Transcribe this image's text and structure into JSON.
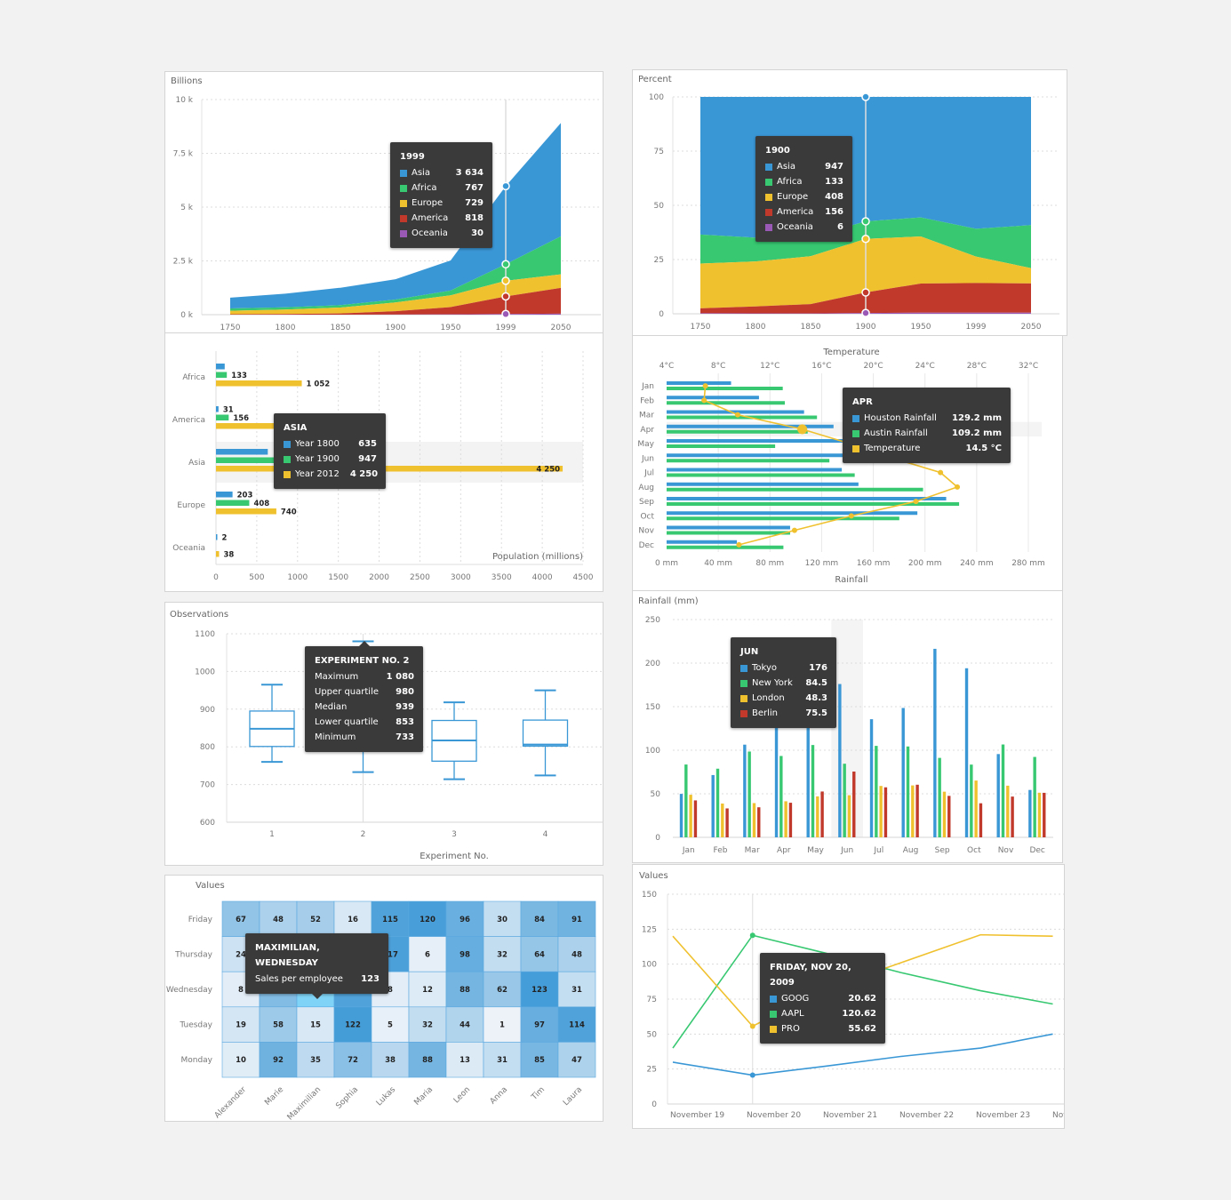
{
  "colors": {
    "blue": "#3a97d6",
    "green": "#37c871",
    "yellow": "#f0c12f",
    "red": "#c0392b",
    "purple": "#9b59b6",
    "tooltip_bg": "#3a3a3a"
  },
  "chart_data": [
    {
      "id": "stacked-area",
      "type": "area",
      "stacked": true,
      "title": "",
      "ylabel": "Billions",
      "xlabel": "",
      "categories": [
        "1750",
        "1800",
        "1850",
        "1900",
        "1950",
        "1999",
        "2050"
      ],
      "yticks": [
        "0 k",
        "2.5 k",
        "5 k",
        "7.5 k",
        "10 k"
      ],
      "ylim": [
        0,
        10000
      ],
      "grid": true,
      "series": [
        {
          "name": "Asia",
          "color": "#3a97d6",
          "values": [
            502,
            635,
            809,
            947,
            1402,
            3634,
            5268
          ]
        },
        {
          "name": "Africa",
          "color": "#37c871",
          "values": [
            106,
            107,
            111,
            133,
            221,
            767,
            1766
          ]
        },
        {
          "name": "Europe",
          "color": "#f0c12f",
          "values": [
            163,
            203,
            276,
            408,
            547,
            729,
            628
          ]
        },
        {
          "name": "America",
          "color": "#c0392b",
          "values": [
            18,
            31,
            54,
            156,
            339,
            818,
            1201
          ]
        },
        {
          "name": "Oceania",
          "color": "#9b59b6",
          "values": [
            2,
            2,
            2,
            6,
            13,
            30,
            46
          ]
        }
      ],
      "tooltip": {
        "title": "1999",
        "rows": [
          {
            "label": "Asia",
            "value": "3 634",
            "color": "#3a97d6"
          },
          {
            "label": "Africa",
            "value": "767",
            "color": "#37c871"
          },
          {
            "label": "Europe",
            "value": "729",
            "color": "#f0c12f"
          },
          {
            "label": "America",
            "value": "818",
            "color": "#c0392b"
          },
          {
            "label": "Oceania",
            "value": "30",
            "color": "#9b59b6"
          }
        ]
      },
      "crosshair_category": "1999"
    },
    {
      "id": "percent-area",
      "type": "area",
      "stacked": "percent",
      "title": "",
      "ylabel": "Percent",
      "xlabel": "",
      "categories": [
        "1750",
        "1800",
        "1850",
        "1900",
        "1950",
        "1999",
        "2050"
      ],
      "yticks": [
        "0",
        "25",
        "50",
        "75",
        "100"
      ],
      "ylim": [
        0,
        100
      ],
      "grid": true,
      "series": [
        {
          "name": "Asia",
          "color": "#3a97d6",
          "values": [
            502,
            635,
            809,
            947,
            1402,
            3634,
            5268
          ]
        },
        {
          "name": "Africa",
          "color": "#37c871",
          "values": [
            106,
            107,
            111,
            133,
            221,
            767,
            1766
          ]
        },
        {
          "name": "Europe",
          "color": "#f0c12f",
          "values": [
            163,
            203,
            276,
            408,
            547,
            729,
            628
          ]
        },
        {
          "name": "America",
          "color": "#c0392b",
          "values": [
            18,
            31,
            54,
            156,
            339,
            818,
            1201
          ]
        },
        {
          "name": "Oceania",
          "color": "#9b59b6",
          "values": [
            2,
            2,
            2,
            6,
            13,
            30,
            46
          ]
        }
      ],
      "tooltip": {
        "title": "1900",
        "rows": [
          {
            "label": "Asia",
            "value": "947",
            "color": "#3a97d6"
          },
          {
            "label": "Africa",
            "value": "133",
            "color": "#37c871"
          },
          {
            "label": "Europe",
            "value": "408",
            "color": "#f0c12f"
          },
          {
            "label": "America",
            "value": "156",
            "color": "#c0392b"
          },
          {
            "label": "Oceania",
            "value": "6",
            "color": "#9b59b6"
          }
        ]
      },
      "crosshair_category": "1900"
    },
    {
      "id": "horizontal-bar",
      "type": "bar",
      "orientation": "horizontal",
      "title": "",
      "xlabel": "Population (millions)",
      "ylabel": "",
      "categories": [
        "Africa",
        "America",
        "Asia",
        "Europe",
        "Oceania"
      ],
      "xticks": [
        "0",
        "500",
        "1000",
        "1500",
        "2000",
        "2500",
        "3000",
        "3500",
        "4000",
        "4500"
      ],
      "xlim": [
        0,
        4500
      ],
      "grid": true,
      "series": [
        {
          "name": "Year 1800",
          "color": "#3a97d6",
          "values": [
            107,
            31,
            635,
            203,
            2
          ],
          "labels": [
            "",
            "31",
            "",
            "203",
            "2"
          ]
        },
        {
          "name": "Year 1900",
          "color": "#37c871",
          "values": [
            133,
            156,
            947,
            408,
            6
          ],
          "labels": [
            "133",
            "156",
            "",
            "408",
            ""
          ]
        },
        {
          "name": "Year 2012",
          "color": "#f0c12f",
          "values": [
            1052,
            954,
            4250,
            740,
            38
          ],
          "labels": [
            "1 052",
            "",
            "4 250",
            "740",
            "38"
          ]
        }
      ],
      "highlight_category": "Asia",
      "tooltip": {
        "title": "ASIA",
        "rows": [
          {
            "label": "Year 1800",
            "value": "635",
            "color": "#3a97d6"
          },
          {
            "label": "Year 1900",
            "value": "947",
            "color": "#37c871"
          },
          {
            "label": "Year 2012",
            "value": "4 250",
            "color": "#f0c12f"
          }
        ]
      }
    },
    {
      "id": "combo-rain-temp",
      "type": "bar",
      "orientation": "horizontal",
      "title": "",
      "xlabel": "Rainfall",
      "x2label": "Temperature",
      "categories": [
        "Jan",
        "Feb",
        "Mar",
        "Apr",
        "May",
        "Jun",
        "Jul",
        "Aug",
        "Sep",
        "Oct",
        "Nov",
        "Dec"
      ],
      "xticks": [
        "0 mm",
        "40 mm",
        "80 mm",
        "120 mm",
        "160 mm",
        "200 mm",
        "240 mm",
        "280 mm"
      ],
      "x2ticks": [
        "4°C",
        "8°C",
        "12°C",
        "16°C",
        "20°C",
        "24°C",
        "28°C",
        "32°C"
      ],
      "xlim": [
        0,
        280
      ],
      "x2lim": [
        4,
        32
      ],
      "grid": true,
      "series": [
        {
          "name": "Houston Rainfall",
          "color": "#3a97d6",
          "type": "bar",
          "values": [
            49.9,
            71.5,
            106.4,
            129.2,
            144.0,
            176.0,
            135.6,
            148.5,
            216.4,
            194.1,
            95.6,
            54.4
          ]
        },
        {
          "name": "Austin Rainfall",
          "color": "#37c871",
          "type": "bar",
          "values": [
            89.9,
            91.5,
            116.4,
            109.2,
            84.0,
            126.0,
            145.6,
            198.5,
            226.4,
            180.1,
            95.6,
            90.4
          ]
        },
        {
          "name": "Temperature",
          "color": "#f0c12f",
          "type": "line",
          "values": [
            7.0,
            6.9,
            9.5,
            14.5,
            18.2,
            21.5,
            25.2,
            26.5,
            23.3,
            18.3,
            13.9,
            9.6
          ]
        }
      ],
      "highlight_category": "Apr",
      "tooltip": {
        "title": "APR",
        "rows": [
          {
            "label": "Houston Rainfall",
            "value": "129.2 mm",
            "color": "#3a97d6"
          },
          {
            "label": "Austin Rainfall",
            "value": "109.2 mm",
            "color": "#37c871"
          },
          {
            "label": "Temperature",
            "value": "14.5 °C",
            "color": "#f0c12f"
          }
        ]
      }
    },
    {
      "id": "boxplot",
      "type": "boxplot",
      "title": "",
      "xlabel": "Experiment No.",
      "ylabel": "Observations",
      "categories": [
        "1",
        "2",
        "3",
        "4"
      ],
      "yticks": [
        "600",
        "700",
        "800",
        "900",
        "1000",
        "1100"
      ],
      "ylim": [
        600,
        1100
      ],
      "grid": true,
      "boxes": [
        {
          "min": 760,
          "q1": 801,
          "median": 848,
          "q3": 895,
          "max": 965
        },
        {
          "min": 733,
          "q1": 853,
          "median": 939,
          "q3": 980,
          "max": 1080
        },
        {
          "min": 714,
          "q1": 762,
          "median": 817,
          "q3": 870,
          "max": 918
        },
        {
          "min": 724,
          "q1": 802,
          "median": 806,
          "q3": 871,
          "max": 950
        }
      ],
      "color": "#3a97d6",
      "tooltip": {
        "title": "EXPERIMENT NO. 2",
        "rows": [
          {
            "label": "Maximum",
            "value": "1 080"
          },
          {
            "label": "Upper quartile",
            "value": "980"
          },
          {
            "label": "Median",
            "value": "939"
          },
          {
            "label": "Lower quartile",
            "value": "853"
          },
          {
            "label": "Minimum",
            "value": "733"
          }
        ]
      }
    },
    {
      "id": "column-rainfall",
      "type": "bar",
      "orientation": "vertical",
      "title": "",
      "ylabel": "Rainfall (mm)",
      "xlabel": "",
      "categories": [
        "Jan",
        "Feb",
        "Mar",
        "Apr",
        "May",
        "Jun",
        "Jul",
        "Aug",
        "Sep",
        "Oct",
        "Nov",
        "Dec"
      ],
      "yticks": [
        "0",
        "50",
        "100",
        "150",
        "200",
        "250"
      ],
      "ylim": [
        0,
        250
      ],
      "grid": true,
      "series": [
        {
          "name": "Tokyo",
          "color": "#3a97d6",
          "values": [
            49.9,
            71.5,
            106.4,
            129.2,
            144.0,
            176.0,
            135.6,
            148.5,
            216.4,
            194.1,
            95.6,
            54.4
          ]
        },
        {
          "name": "New York",
          "color": "#37c871",
          "values": [
            83.6,
            78.8,
            98.5,
            93.4,
            106.0,
            84.5,
            105.0,
            104.3,
            91.2,
            83.5,
            106.6,
            92.3
          ]
        },
        {
          "name": "London",
          "color": "#f0c12f",
          "values": [
            48.9,
            38.8,
            39.3,
            41.4,
            47.0,
            48.3,
            59.0,
            59.6,
            52.4,
            65.2,
            59.3,
            51.2
          ]
        },
        {
          "name": "Berlin",
          "color": "#c0392b",
          "values": [
            42.4,
            33.2,
            34.5,
            39.7,
            52.6,
            75.5,
            57.4,
            60.4,
            47.6,
            39.1,
            46.8,
            51.1
          ]
        }
      ],
      "highlight_category": "Jun",
      "tooltip": {
        "title": "JUN",
        "rows": [
          {
            "label": "Tokyo",
            "value": "176",
            "color": "#3a97d6"
          },
          {
            "label": "New York",
            "value": "84.5",
            "color": "#37c871"
          },
          {
            "label": "London",
            "value": "48.3",
            "color": "#f0c12f"
          },
          {
            "label": "Berlin",
            "value": "75.5",
            "color": "#c0392b"
          }
        ]
      }
    },
    {
      "id": "heatmap",
      "type": "heatmap",
      "title": "",
      "ylabel": "Values",
      "xcategories": [
        "Alexander",
        "Marie",
        "Maximilian",
        "Sophia",
        "Lukas",
        "Maria",
        "Leon",
        "Anna",
        "Tim",
        "Laura"
      ],
      "ycategories": [
        "Friday",
        "Thursday",
        "Wednesday",
        "Tuesday",
        "Monday"
      ],
      "values": [
        [
          67,
          48,
          52,
          16,
          115,
          120,
          96,
          30,
          84,
          91
        ],
        [
          24,
          92,
          58,
          78,
          117,
          6,
          98,
          32,
          64,
          48
        ],
        [
          8,
          78,
          123,
          114,
          8,
          12,
          88,
          62,
          123,
          31
        ],
        [
          19,
          58,
          15,
          122,
          5,
          32,
          44,
          1,
          97,
          114
        ],
        [
          10,
          92,
          35,
          72,
          38,
          88,
          13,
          31,
          85,
          47
        ]
      ],
      "value_range": [
        0,
        130
      ],
      "color_min": "#eef3f9",
      "color_max": "#3a97d6",
      "highlight_cell": {
        "x": 2,
        "y": 2,
        "color": "#7fd3f7"
      },
      "tooltip": {
        "title": "MAXIMILIAN, WEDNESDAY",
        "rows": [
          {
            "label": "Sales per employee",
            "value": "123"
          }
        ]
      }
    },
    {
      "id": "line-stocks",
      "type": "line",
      "title": "",
      "ylabel": "Values",
      "xlabel": "",
      "categories": [
        "November 19",
        "November 20",
        "November 21",
        "November 22",
        "November 23",
        "Nov"
      ],
      "yticks": [
        "0",
        "25",
        "50",
        "75",
        "100",
        "125",
        "150"
      ],
      "ylim": [
        0,
        150
      ],
      "grid": true,
      "x_points": [
        0,
        1.05,
        2,
        3,
        4.05,
        5
      ],
      "series": [
        {
          "name": "GOOG",
          "color": "#3a97d6",
          "values": [
            29.9,
            20.62,
            27.0,
            34.0,
            40.0,
            50.0
          ]
        },
        {
          "name": "AAPL",
          "color": "#37c871",
          "values": [
            40.0,
            120.62,
            108.0,
            94.0,
            81.0,
            71.5
          ]
        },
        {
          "name": "PRO",
          "color": "#f0c12f",
          "values": [
            120.0,
            55.62,
            82.0,
            101.0,
            121.0,
            120.0
          ]
        }
      ],
      "crosshair_index": 1,
      "tooltip": {
        "title": "FRIDAY, NOV 20, 2009",
        "rows": [
          {
            "label": "GOOG",
            "value": "20.62",
            "color": "#3a97d6"
          },
          {
            "label": "AAPL",
            "value": "120.62",
            "color": "#37c871"
          },
          {
            "label": "PRO",
            "value": "55.62",
            "color": "#f0c12f"
          }
        ]
      }
    }
  ]
}
